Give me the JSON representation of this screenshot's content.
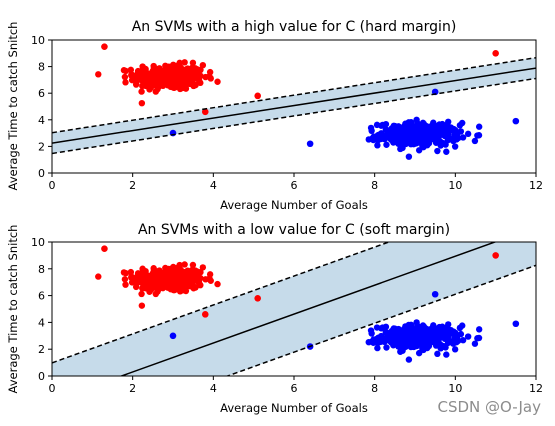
{
  "watermark": "CSDN @O-Jay",
  "colors": {
    "class_a": "#ff0000",
    "class_b": "#0000ff",
    "margin_fill": "#c6dbea"
  },
  "chart_data": [
    {
      "type": "scatter",
      "title": "An SVMs with a high value for C (hard margin)",
      "xlabel": "Average Number of Goals",
      "ylabel": "Average Time to catch Snitch",
      "xlim": [
        0,
        12
      ],
      "ylim": [
        0,
        10
      ],
      "xticks": [
        0,
        2,
        4,
        6,
        8,
        10,
        12
      ],
      "yticks": [
        0,
        2,
        4,
        6,
        8,
        10
      ],
      "clusters": [
        {
          "color": "red",
          "center": [
            2.9,
            7.2
          ],
          "spread": [
            0.7,
            0.75
          ],
          "count": 360
        },
        {
          "color": "blue",
          "center": [
            9.1,
            2.9
          ],
          "spread": [
            0.8,
            0.7
          ],
          "count": 360
        }
      ],
      "outliers": [
        {
          "x": 1.3,
          "y": 9.5,
          "color": "red"
        },
        {
          "x": 3.8,
          "y": 4.6,
          "color": "red"
        },
        {
          "x": 5.1,
          "y": 5.8,
          "color": "red"
        },
        {
          "x": 11.0,
          "y": 9.0,
          "color": "red"
        },
        {
          "x": 3.0,
          "y": 3.0,
          "color": "blue"
        },
        {
          "x": 9.5,
          "y": 6.1,
          "color": "blue"
        },
        {
          "x": 6.4,
          "y": 2.2,
          "color": "blue"
        },
        {
          "x": 11.5,
          "y": 3.9,
          "color": "blue"
        }
      ],
      "decision_boundary": {
        "slope": 0.47,
        "intercept": 2.25
      },
      "margin_offset": 0.78
    },
    {
      "type": "scatter",
      "title": "An SVMs with a low value for C (soft margin)",
      "xlabel": "Average Number of Goals",
      "ylabel": "Average Time to catch Snitch",
      "xlim": [
        0,
        12
      ],
      "ylim": [
        0,
        10
      ],
      "xticks": [
        0,
        2,
        4,
        6,
        8,
        10,
        12
      ],
      "yticks": [
        0,
        2,
        4,
        6,
        8,
        10
      ],
      "clusters": [
        {
          "color": "red",
          "center": [
            2.9,
            7.2
          ],
          "spread": [
            0.7,
            0.75
          ],
          "count": 360
        },
        {
          "color": "blue",
          "center": [
            9.1,
            2.9
          ],
          "spread": [
            0.8,
            0.7
          ],
          "count": 360
        }
      ],
      "outliers": [
        {
          "x": 1.3,
          "y": 9.5,
          "color": "red"
        },
        {
          "x": 3.8,
          "y": 4.6,
          "color": "red"
        },
        {
          "x": 5.1,
          "y": 5.8,
          "color": "red"
        },
        {
          "x": 11.0,
          "y": 9.0,
          "color": "red"
        },
        {
          "x": 3.0,
          "y": 3.0,
          "color": "blue"
        },
        {
          "x": 9.5,
          "y": 6.1,
          "color": "blue"
        },
        {
          "x": 6.4,
          "y": 2.2,
          "color": "blue"
        },
        {
          "x": 11.5,
          "y": 3.9,
          "color": "blue"
        }
      ],
      "decision_boundary": {
        "slope": 1.08,
        "intercept": -1.86
      },
      "margin_offset": 2.84
    }
  ]
}
